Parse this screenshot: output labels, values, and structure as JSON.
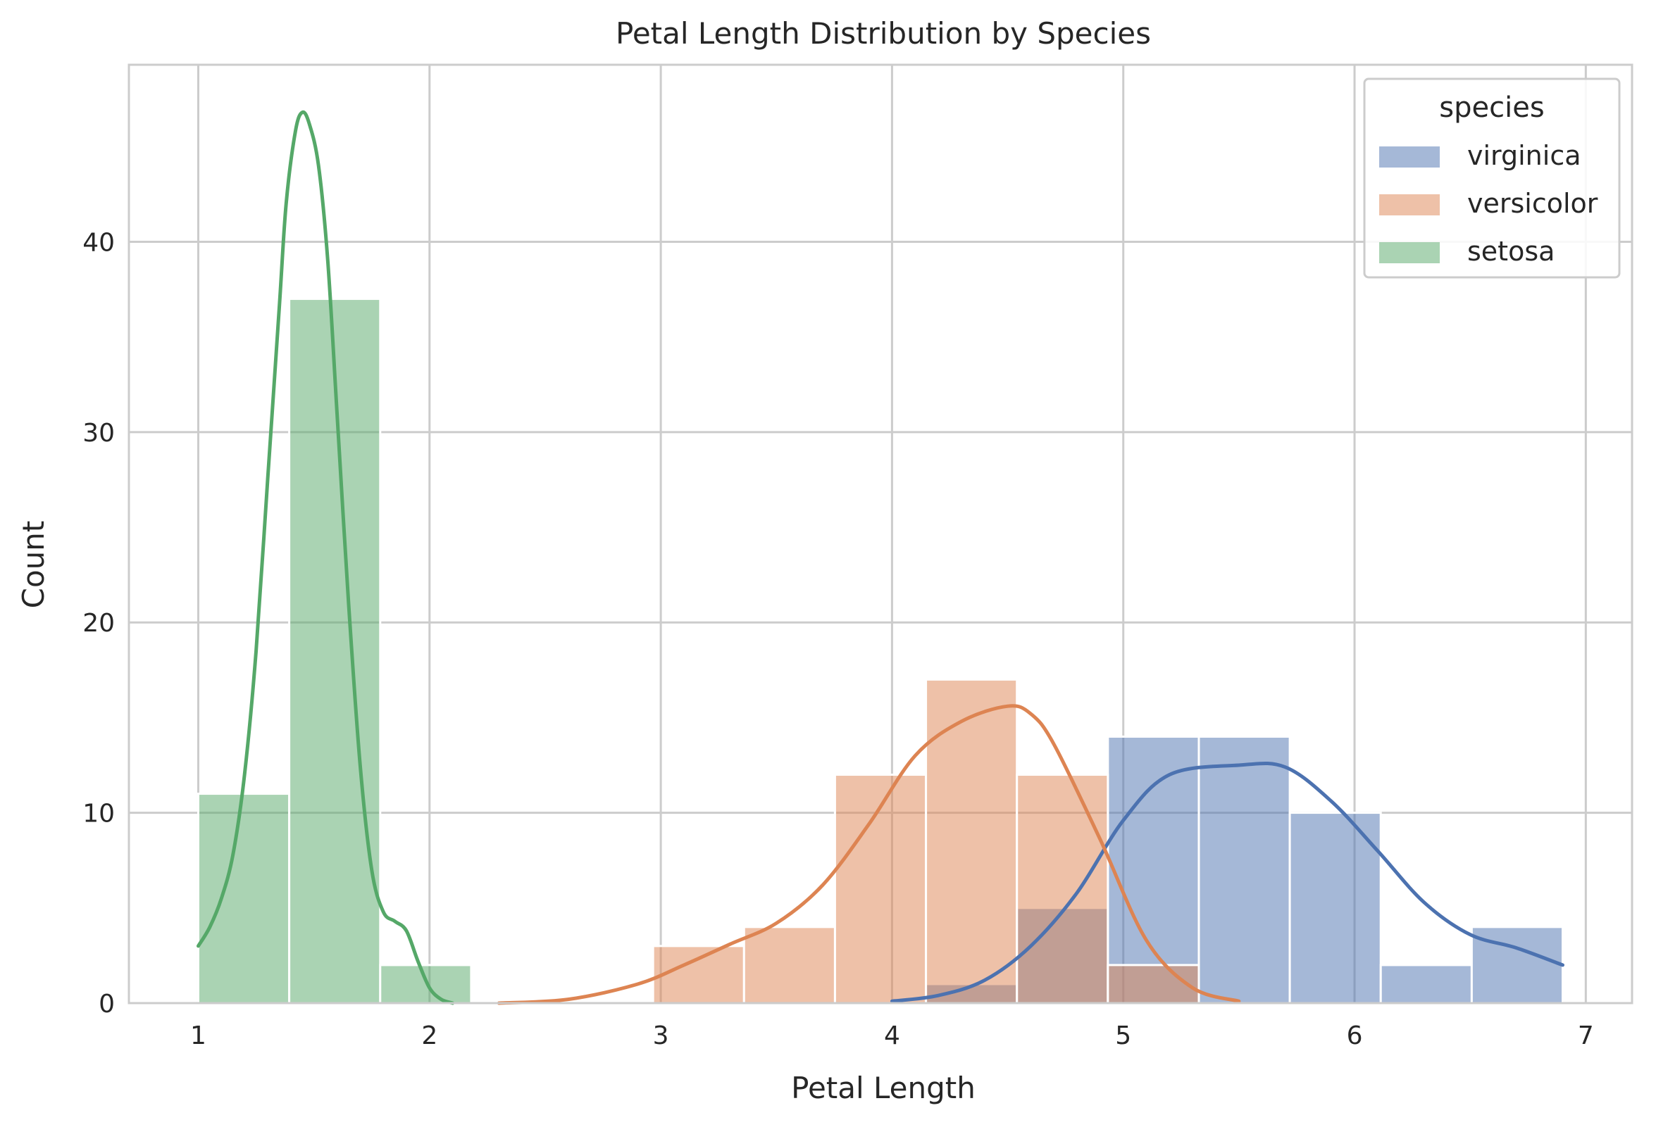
{
  "chart_data": {
    "type": "histogram",
    "title": "Petal Length Distribution by Species",
    "xlabel": "Petal Length",
    "ylabel": "Count",
    "xlim": [
      0.7,
      7.2
    ],
    "ylim": [
      0,
      49.3
    ],
    "x_ticks": [
      1,
      2,
      3,
      4,
      5,
      6,
      7
    ],
    "y_ticks": [
      0,
      10,
      20,
      30,
      40
    ],
    "grid": true,
    "legend": {
      "title": "species",
      "position": "top-right"
    },
    "bin_edges": [
      1.0,
      1.3933,
      1.7867,
      2.18,
      2.5733,
      2.9667,
      3.36,
      3.7533,
      4.1467,
      4.54,
      4.9333,
      5.3267,
      5.72,
      6.1133,
      6.5067,
      6.9
    ],
    "series": [
      {
        "name": "virginica",
        "color": "#4c72b0",
        "counts": [
          0,
          0,
          0,
          0,
          0,
          0,
          0,
          0,
          1,
          5,
          14,
          14,
          10,
          2,
          4
        ],
        "kde": [
          [
            4.0,
            0.1
          ],
          [
            4.2,
            0.4
          ],
          [
            4.4,
            1.2
          ],
          [
            4.6,
            3.0
          ],
          [
            4.8,
            5.8
          ],
          [
            5.0,
            9.6
          ],
          [
            5.2,
            12.0
          ],
          [
            5.5,
            12.5
          ],
          [
            5.7,
            12.4
          ],
          [
            5.9,
            10.6
          ],
          [
            6.1,
            8.0
          ],
          [
            6.3,
            5.3
          ],
          [
            6.5,
            3.6
          ],
          [
            6.7,
            2.9
          ],
          [
            6.9,
            2.0
          ]
        ]
      },
      {
        "name": "versicolor",
        "color": "#dd8452",
        "counts": [
          0,
          0,
          0,
          0,
          0,
          3,
          4,
          12,
          17,
          12,
          2,
          0,
          0,
          0,
          0
        ],
        "kde": [
          [
            2.3,
            0.0
          ],
          [
            2.6,
            0.2
          ],
          [
            2.9,
            1.0
          ],
          [
            3.1,
            2.0
          ],
          [
            3.3,
            3.1
          ],
          [
            3.5,
            4.2
          ],
          [
            3.7,
            6.2
          ],
          [
            3.9,
            9.4
          ],
          [
            4.1,
            13.0
          ],
          [
            4.3,
            14.8
          ],
          [
            4.5,
            15.6
          ],
          [
            4.6,
            15.2
          ],
          [
            4.7,
            13.6
          ],
          [
            4.9,
            8.6
          ],
          [
            5.1,
            3.3
          ],
          [
            5.3,
            0.8
          ],
          [
            5.5,
            0.1
          ]
        ]
      },
      {
        "name": "setosa",
        "color": "#55a868",
        "counts": [
          11,
          37,
          2,
          0,
          0,
          0,
          0,
          0,
          0,
          0,
          0,
          0,
          0,
          0,
          0
        ],
        "kde": [
          [
            1.0,
            3.0
          ],
          [
            1.05,
            4.0
          ],
          [
            1.1,
            5.5
          ],
          [
            1.15,
            7.8
          ],
          [
            1.2,
            12.0
          ],
          [
            1.25,
            18.5
          ],
          [
            1.3,
            27.5
          ],
          [
            1.35,
            36.5
          ],
          [
            1.38,
            42.0
          ],
          [
            1.42,
            45.8
          ],
          [
            1.45,
            46.8
          ],
          [
            1.48,
            46.2
          ],
          [
            1.52,
            44.0
          ],
          [
            1.56,
            39.0
          ],
          [
            1.6,
            31.0
          ],
          [
            1.65,
            21.0
          ],
          [
            1.7,
            12.5
          ],
          [
            1.75,
            7.0
          ],
          [
            1.8,
            4.8
          ],
          [
            1.85,
            4.3
          ],
          [
            1.9,
            3.8
          ],
          [
            1.95,
            2.2
          ],
          [
            2.0,
            0.8
          ],
          [
            2.05,
            0.2
          ],
          [
            2.1,
            0.0
          ]
        ]
      }
    ]
  }
}
